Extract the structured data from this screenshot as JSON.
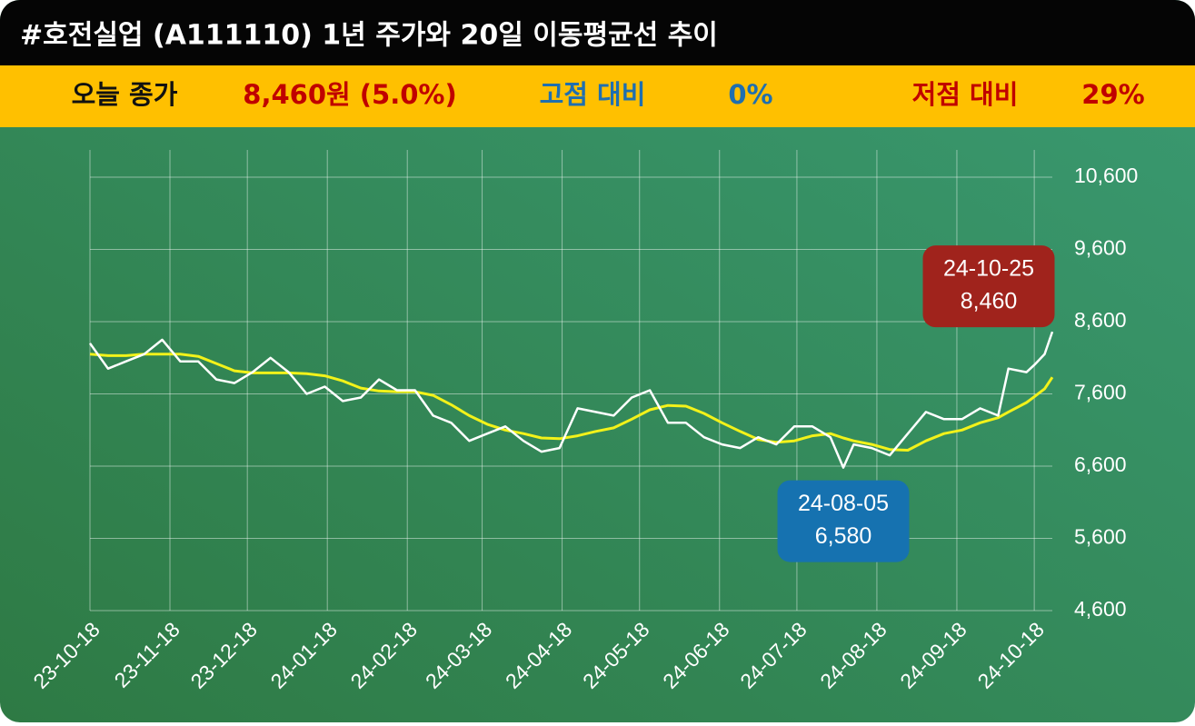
{
  "chart_data": {
    "type": "line",
    "title": "#호전실업 (A111110) 1년 주가와 20일 이동평균선 추이",
    "summary": [
      {
        "text": "오늘 종가",
        "color": "#111111"
      },
      {
        "text": "8,460원 (5.0%)",
        "color": "#c00000"
      },
      {
        "text": "고점 대비",
        "color": "#1f6fb0"
      },
      {
        "text": "0%",
        "color": "#1f6fb0"
      },
      {
        "text": "저점 대비",
        "color": "#c00000"
      },
      {
        "text": "29%",
        "color": "#c00000"
      }
    ],
    "x": [
      "23-10-18",
      "23-10-25",
      "23-11-01",
      "23-11-08",
      "23-11-15",
      "23-11-22",
      "23-11-29",
      "23-12-06",
      "23-12-13",
      "23-12-20",
      "23-12-27",
      "24-01-03",
      "24-01-10",
      "24-01-17",
      "24-01-24",
      "24-01-31",
      "24-02-07",
      "24-02-14",
      "24-02-21",
      "24-02-28",
      "24-03-06",
      "24-03-13",
      "24-03-20",
      "24-03-27",
      "24-04-03",
      "24-04-10",
      "24-04-17",
      "24-04-24",
      "24-05-01",
      "24-05-08",
      "24-05-15",
      "24-05-22",
      "24-05-29",
      "24-06-05",
      "24-06-12",
      "24-06-19",
      "24-06-26",
      "24-07-03",
      "24-07-10",
      "24-07-17",
      "24-07-24",
      "24-07-31",
      "24-08-05",
      "24-08-09",
      "24-08-16",
      "24-08-23",
      "24-08-30",
      "24-09-06",
      "24-09-13",
      "24-09-20",
      "24-09-27",
      "24-10-04",
      "24-10-08",
      "24-10-15",
      "24-10-18",
      "24-10-22",
      "24-10-25"
    ],
    "series": [
      {
        "color": "#ffffff",
        "width": 2.5,
        "values": [
          8300,
          7950,
          8050,
          8150,
          8350,
          8050,
          8050,
          7800,
          7750,
          7900,
          8100,
          7900,
          7600,
          7700,
          7500,
          7550,
          7800,
          7650,
          7650,
          7300,
          7200,
          6950,
          7050,
          7150,
          6950,
          6800,
          6850,
          7400,
          7350,
          7300,
          7550,
          7650,
          7200,
          7200,
          7000,
          6900,
          6850,
          7000,
          6900,
          7150,
          7150,
          7000,
          6580,
          6900,
          6850,
          6750,
          7050,
          7350,
          7250,
          7250,
          7400,
          7300,
          7950,
          7900,
          8000,
          8150,
          8460
        ]
      },
      {
        "color": "#f2f21a",
        "width": 3,
        "values": [
          8150,
          8130,
          8130,
          8150,
          8150,
          8150,
          8120,
          8020,
          7920,
          7890,
          7890,
          7890,
          7880,
          7850,
          7780,
          7680,
          7640,
          7630,
          7630,
          7580,
          7450,
          7300,
          7180,
          7100,
          7050,
          6990,
          6980,
          7020,
          7080,
          7130,
          7250,
          7380,
          7440,
          7430,
          7330,
          7200,
          7080,
          6970,
          6930,
          6950,
          7020,
          7050,
          6990,
          6950,
          6900,
          6830,
          6820,
          6950,
          7050,
          7100,
          7200,
          7270,
          7350,
          7480,
          7560,
          7670,
          7830
        ]
      }
    ],
    "xlim": [
      "23-10-18",
      "24-10-25"
    ],
    "xticks": [
      "23-10-18",
      "23-11-18",
      "23-12-18",
      "24-01-18",
      "24-02-18",
      "24-03-18",
      "24-04-18",
      "24-05-18",
      "24-06-18",
      "24-07-18",
      "24-08-18",
      "24-09-18",
      "24-10-18"
    ],
    "ylim": [
      4600,
      10600
    ],
    "yticks": [
      {
        "value": 4600,
        "label": "4,600"
      },
      {
        "value": 5600,
        "label": "5,600"
      },
      {
        "value": 6600,
        "label": "6,600"
      },
      {
        "value": 7600,
        "label": "7,600"
      },
      {
        "value": 8600,
        "label": "8,600"
      },
      {
        "value": 9600,
        "label": "9,600"
      },
      {
        "value": 10600,
        "label": "10,600"
      }
    ],
    "grid": true,
    "annotations": [
      {
        "x": "24-10-25",
        "value": 8460,
        "label": "8,460",
        "color": "#a0231c",
        "placement": "above-left"
      },
      {
        "x": "24-08-05",
        "value": 6580,
        "label": "6,580",
        "color": "#1672b0",
        "placement": "below"
      }
    ]
  }
}
